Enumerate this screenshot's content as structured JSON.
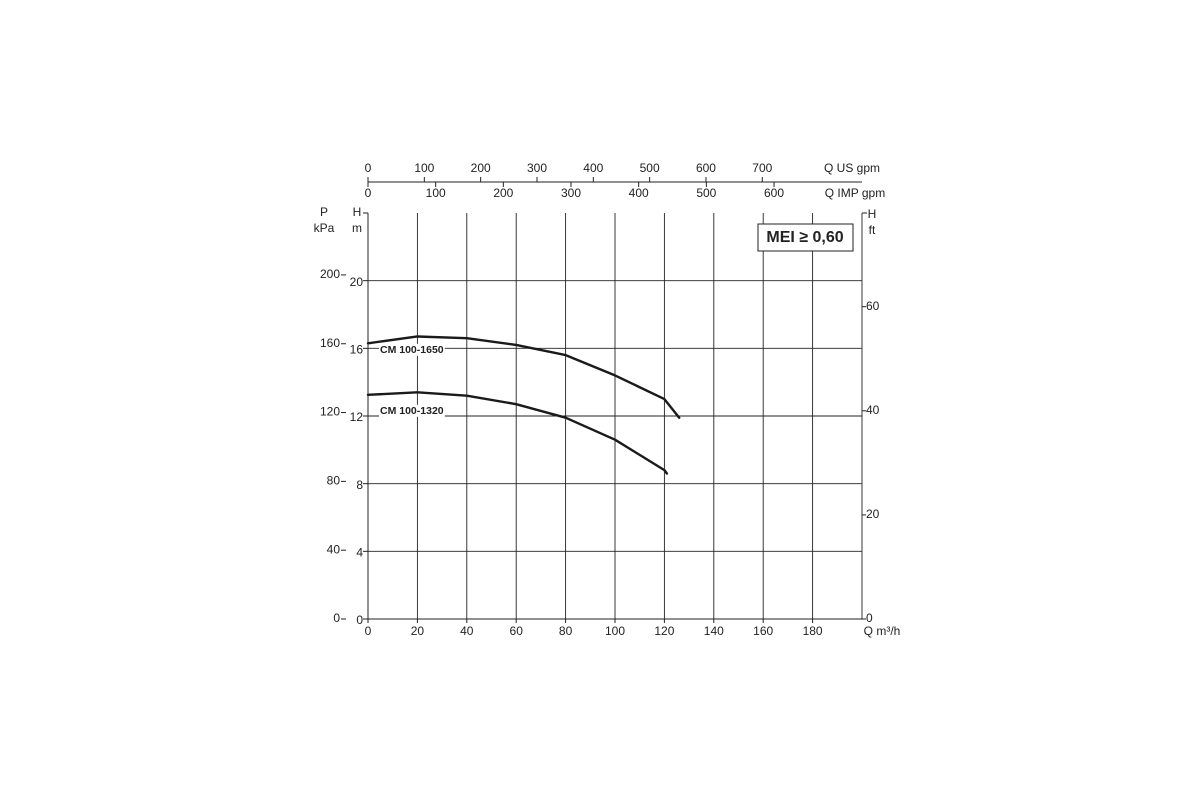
{
  "chart_data": {
    "type": "line",
    "annotation": "MEI ≥ 0,60",
    "grid": true,
    "xlabel": "Q m³/h",
    "xlim": [
      0,
      200
    ],
    "xticks": [
      0,
      20,
      40,
      60,
      80,
      100,
      120,
      140,
      160,
      180
    ],
    "x2label": "Q US gpm",
    "x2lim": [
      0,
      877
    ],
    "x2ticks": [
      0,
      100,
      200,
      300,
      400,
      500,
      600,
      700
    ],
    "x3label": "Q IMP gpm",
    "x3lim": [
      0,
      730
    ],
    "x3ticks": [
      0,
      100,
      200,
      300,
      400,
      500,
      600
    ],
    "ylabel": "H",
    "yunit": "m",
    "ylim": [
      0,
      24
    ],
    "yticks": [
      0,
      4,
      8,
      12,
      16,
      20
    ],
    "y2label": "H",
    "y2unit": "ft",
    "y2lim": [
      0,
      78
    ],
    "y2ticks": [
      0,
      20,
      40,
      60
    ],
    "y3label": "P",
    "y3unit": "kPa",
    "y3lim": [
      0,
      236
    ],
    "y3ticks": [
      0,
      40,
      80,
      120,
      160,
      200
    ],
    "series": [
      {
        "name": "CM 100-1650",
        "color": "#1a1a1a",
        "x": [
          0,
          20,
          40,
          60,
          80,
          100,
          120,
          126
        ],
        "values": [
          16.3,
          16.7,
          16.6,
          16.2,
          15.6,
          14.4,
          13.0,
          11.9
        ]
      },
      {
        "name": "CM 100-1320",
        "color": "#1a1a1a",
        "x": [
          0,
          20,
          40,
          60,
          80,
          100,
          120,
          121
        ],
        "values": [
          13.25,
          13.4,
          13.2,
          12.7,
          11.9,
          10.6,
          8.8,
          8.6
        ]
      }
    ]
  }
}
